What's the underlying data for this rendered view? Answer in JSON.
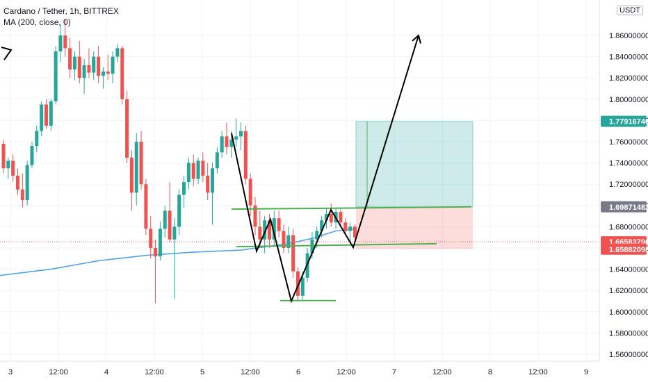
{
  "header": {
    "title": "Cardano / Tether, 1h, BITTREX",
    "indicator": "MA (200, close, 0)",
    "currency": "USDT"
  },
  "chart_data": {
    "type": "candlestick",
    "y_tick_labels": [
      "1.56000000",
      "1.58000000",
      "1.60000000",
      "1.62000000",
      "1.64000000",
      "1.66000000",
      "1.68000000",
      "1.70000000",
      "1.72000000",
      "1.74000000",
      "1.76000000",
      "1.78000000",
      "1.80000000",
      "1.82000000",
      "1.84000000",
      "1.86000000"
    ],
    "x_tick_labels": [
      "3",
      "12:00",
      "4",
      "12:00",
      "5",
      "12:00",
      "6",
      "12:00",
      "7",
      "12:00",
      "8",
      "12:00",
      "9"
    ],
    "price_badges": [
      {
        "label": "1.77916740",
        "value": 1.7791674,
        "color": "#26a69a"
      },
      {
        "label": "1.69871482",
        "value": 1.69871482,
        "color": "#787b86"
      },
      {
        "label": "1.66583796",
        "value": 1.66583796,
        "color": "#ef5350"
      },
      {
        "label": "1.65882098",
        "value": 1.65882098,
        "color": "#ef5350"
      }
    ],
    "ylim": [
      1.552,
      1.882
    ],
    "up_color": "#26a69a",
    "down_color": "#ef5350",
    "ma_color": "#4fa3e0",
    "candles": [
      {
        "t": 0,
        "o": 1.758,
        "h": 1.762,
        "l": 1.73,
        "c": 1.735
      },
      {
        "t": 1,
        "o": 1.735,
        "h": 1.745,
        "l": 1.725,
        "c": 1.742
      },
      {
        "t": 2,
        "o": 1.742,
        "h": 1.748,
        "l": 1.722,
        "c": 1.728
      },
      {
        "t": 3,
        "o": 1.728,
        "h": 1.735,
        "l": 1.71,
        "c": 1.715
      },
      {
        "t": 4,
        "o": 1.715,
        "h": 1.73,
        "l": 1.698,
        "c": 1.705
      },
      {
        "t": 5,
        "o": 1.705,
        "h": 1.742,
        "l": 1.7,
        "c": 1.738
      },
      {
        "t": 6,
        "o": 1.738,
        "h": 1.76,
        "l": 1.735,
        "c": 1.756
      },
      {
        "t": 7,
        "o": 1.756,
        "h": 1.775,
        "l": 1.75,
        "c": 1.77
      },
      {
        "t": 8,
        "o": 1.77,
        "h": 1.798,
        "l": 1.765,
        "c": 1.795
      },
      {
        "t": 9,
        "o": 1.795,
        "h": 1.8,
        "l": 1.772,
        "c": 1.775
      },
      {
        "t": 10,
        "o": 1.775,
        "h": 1.8,
        "l": 1.77,
        "c": 1.798
      },
      {
        "t": 11,
        "o": 1.798,
        "h": 1.85,
        "l": 1.795,
        "c": 1.845
      },
      {
        "t": 12,
        "o": 1.845,
        "h": 1.87,
        "l": 1.835,
        "c": 1.86
      },
      {
        "t": 13,
        "o": 1.86,
        "h": 1.875,
        "l": 1.84,
        "c": 1.848
      },
      {
        "t": 14,
        "o": 1.848,
        "h": 1.858,
        "l": 1.82,
        "c": 1.828
      },
      {
        "t": 15,
        "o": 1.828,
        "h": 1.845,
        "l": 1.818,
        "c": 1.84
      },
      {
        "t": 16,
        "o": 1.84,
        "h": 1.855,
        "l": 1.815,
        "c": 1.82
      },
      {
        "t": 17,
        "o": 1.82,
        "h": 1.838,
        "l": 1.805,
        "c": 1.832
      },
      {
        "t": 18,
        "o": 1.832,
        "h": 1.848,
        "l": 1.82,
        "c": 1.825
      },
      {
        "t": 19,
        "o": 1.825,
        "h": 1.845,
        "l": 1.818,
        "c": 1.84
      },
      {
        "t": 20,
        "o": 1.84,
        "h": 1.85,
        "l": 1.815,
        "c": 1.822
      },
      {
        "t": 21,
        "o": 1.822,
        "h": 1.83,
        "l": 1.81,
        "c": 1.826
      },
      {
        "t": 22,
        "o": 1.826,
        "h": 1.842,
        "l": 1.818,
        "c": 1.824
      },
      {
        "t": 23,
        "o": 1.824,
        "h": 1.845,
        "l": 1.815,
        "c": 1.84
      },
      {
        "t": 24,
        "o": 1.84,
        "h": 1.852,
        "l": 1.835,
        "c": 1.848
      },
      {
        "t": 25,
        "o": 1.848,
        "h": 1.85,
        "l": 1.795,
        "c": 1.8
      },
      {
        "t": 26,
        "o": 1.8,
        "h": 1.808,
        "l": 1.74,
        "c": 1.745
      },
      {
        "t": 27,
        "o": 1.745,
        "h": 1.752,
        "l": 1.695,
        "c": 1.712
      },
      {
        "t": 28,
        "o": 1.712,
        "h": 1.768,
        "l": 1.7,
        "c": 1.76
      },
      {
        "t": 29,
        "o": 1.76,
        "h": 1.77,
        "l": 1.715,
        "c": 1.72
      },
      {
        "t": 30,
        "o": 1.72,
        "h": 1.725,
        "l": 1.672,
        "c": 1.678
      },
      {
        "t": 31,
        "o": 1.678,
        "h": 1.69,
        "l": 1.65,
        "c": 1.66
      },
      {
        "t": 32,
        "o": 1.66,
        "h": 1.668,
        "l": 1.608,
        "c": 1.652
      },
      {
        "t": 33,
        "o": 1.652,
        "h": 1.685,
        "l": 1.648,
        "c": 1.678
      },
      {
        "t": 34,
        "o": 1.678,
        "h": 1.7,
        "l": 1.67,
        "c": 1.695
      },
      {
        "t": 35,
        "o": 1.695,
        "h": 1.722,
        "l": 1.665,
        "c": 1.668
      },
      {
        "t": 36,
        "o": 1.668,
        "h": 1.688,
        "l": 1.612,
        "c": 1.68
      },
      {
        "t": 37,
        "o": 1.68,
        "h": 1.715,
        "l": 1.672,
        "c": 1.71
      },
      {
        "t": 38,
        "o": 1.71,
        "h": 1.728,
        "l": 1.698,
        "c": 1.722
      },
      {
        "t": 39,
        "o": 1.722,
        "h": 1.745,
        "l": 1.715,
        "c": 1.74
      },
      {
        "t": 40,
        "o": 1.74,
        "h": 1.748,
        "l": 1.718,
        "c": 1.725
      },
      {
        "t": 41,
        "o": 1.725,
        "h": 1.745,
        "l": 1.72,
        "c": 1.742
      },
      {
        "t": 42,
        "o": 1.742,
        "h": 1.75,
        "l": 1.722,
        "c": 1.728
      },
      {
        "t": 43,
        "o": 1.728,
        "h": 1.74,
        "l": 1.705,
        "c": 1.712
      },
      {
        "t": 44,
        "o": 1.712,
        "h": 1.74,
        "l": 1.682,
        "c": 1.735
      },
      {
        "t": 45,
        "o": 1.735,
        "h": 1.755,
        "l": 1.73,
        "c": 1.75
      },
      {
        "t": 46,
        "o": 1.75,
        "h": 1.77,
        "l": 1.745,
        "c": 1.765
      },
      {
        "t": 47,
        "o": 1.765,
        "h": 1.778,
        "l": 1.748,
        "c": 1.755
      },
      {
        "t": 48,
        "o": 1.755,
        "h": 1.77,
        "l": 1.745,
        "c": 1.762
      },
      {
        "t": 49,
        "o": 1.762,
        "h": 1.782,
        "l": 1.755,
        "c": 1.765
      },
      {
        "t": 50,
        "o": 1.765,
        "h": 1.778,
        "l": 1.752,
        "c": 1.77
      },
      {
        "t": 51,
        "o": 1.77,
        "h": 1.775,
        "l": 1.72,
        "c": 1.725
      },
      {
        "t": 52,
        "o": 1.725,
        "h": 1.73,
        "l": 1.69,
        "c": 1.7
      },
      {
        "t": 53,
        "o": 1.7,
        "h": 1.708,
        "l": 1.672,
        "c": 1.68
      },
      {
        "t": 54,
        "o": 1.68,
        "h": 1.695,
        "l": 1.66,
        "c": 1.668
      },
      {
        "t": 55,
        "o": 1.668,
        "h": 1.69,
        "l": 1.655,
        "c": 1.686
      },
      {
        "t": 56,
        "o": 1.686,
        "h": 1.692,
        "l": 1.66,
        "c": 1.668
      },
      {
        "t": 57,
        "o": 1.668,
        "h": 1.695,
        "l": 1.662,
        "c": 1.688
      },
      {
        "t": 58,
        "o": 1.688,
        "h": 1.695,
        "l": 1.67,
        "c": 1.676
      },
      {
        "t": 59,
        "o": 1.676,
        "h": 1.682,
        "l": 1.655,
        "c": 1.66
      },
      {
        "t": 60,
        "o": 1.66,
        "h": 1.68,
        "l": 1.655,
        "c": 1.672
      },
      {
        "t": 61,
        "o": 1.672,
        "h": 1.678,
        "l": 1.632,
        "c": 1.638
      },
      {
        "t": 62,
        "o": 1.638,
        "h": 1.642,
        "l": 1.61,
        "c": 1.615
      },
      {
        "t": 63,
        "o": 1.615,
        "h": 1.638,
        "l": 1.61,
        "c": 1.632
      },
      {
        "t": 64,
        "o": 1.632,
        "h": 1.66,
        "l": 1.628,
        "c": 1.655
      },
      {
        "t": 65,
        "o": 1.655,
        "h": 1.675,
        "l": 1.65,
        "c": 1.668
      },
      {
        "t": 66,
        "o": 1.668,
        "h": 1.68,
        "l": 1.66,
        "c": 1.676
      },
      {
        "t": 67,
        "o": 1.676,
        "h": 1.69,
        "l": 1.67,
        "c": 1.686
      },
      {
        "t": 68,
        "o": 1.686,
        "h": 1.698,
        "l": 1.678,
        "c": 1.692
      },
      {
        "t": 69,
        "o": 1.692,
        "h": 1.702,
        "l": 1.68,
        "c": 1.684
      },
      {
        "t": 70,
        "o": 1.684,
        "h": 1.698,
        "l": 1.678,
        "c": 1.694
      },
      {
        "t": 71,
        "o": 1.694,
        "h": 1.698,
        "l": 1.68,
        "c": 1.684
      },
      {
        "t": 72,
        "o": 1.684,
        "h": 1.688,
        "l": 1.672,
        "c": 1.676
      },
      {
        "t": 73,
        "o": 1.676,
        "h": 1.684,
        "l": 1.665,
        "c": 1.68
      },
      {
        "t": 74,
        "o": 1.68,
        "h": 1.682,
        "l": 1.662,
        "c": 1.67
      }
    ],
    "ma": [
      [
        -1,
        1.634
      ],
      [
        10,
        1.64
      ],
      [
        20,
        1.648
      ],
      [
        30,
        1.653
      ],
      [
        40,
        1.656
      ],
      [
        50,
        1.658
      ],
      [
        55,
        1.661
      ],
      [
        60,
        1.664
      ],
      [
        65,
        1.669
      ],
      [
        70,
        1.676
      ],
      [
        74,
        1.678
      ]
    ]
  }
}
